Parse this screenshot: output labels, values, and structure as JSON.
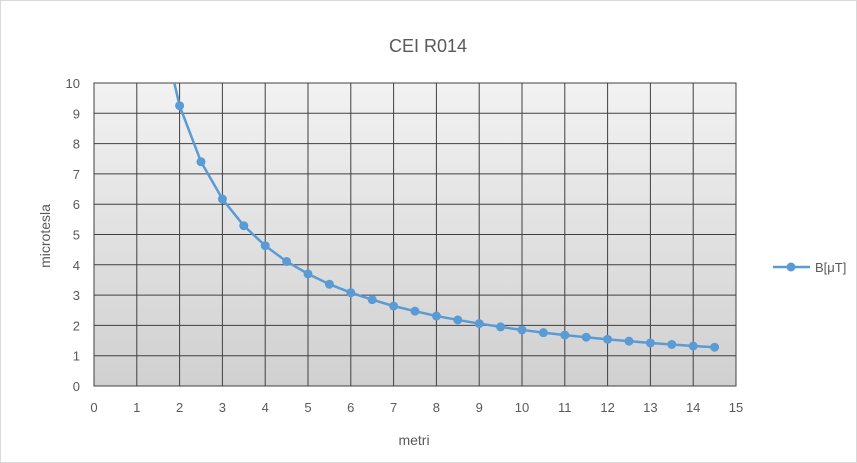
{
  "chart_data": {
    "type": "line",
    "title": "CEI R014",
    "xlabel": "metri",
    "ylabel": "microtesla",
    "xlim": [
      0,
      15
    ],
    "ylim": [
      0,
      10
    ],
    "xticks": [
      "0",
      "1",
      "2",
      "3",
      "4",
      "5",
      "6",
      "7",
      "8",
      "9",
      "10",
      "11",
      "12",
      "13",
      "14",
      "15"
    ],
    "yticks": [
      "0",
      "1",
      "2",
      "3",
      "4",
      "5",
      "6",
      "7",
      "8",
      "9",
      "10"
    ],
    "grid": true,
    "legend_position": "right",
    "colors": {
      "series": "#5b9bd5",
      "grid": "#404040",
      "background_top": "#f2f2f2",
      "background_bottom": "#d0d0d0"
    },
    "series": [
      {
        "name": "B[μT]",
        "x": [
          1.5,
          2,
          2.5,
          3,
          3.5,
          4,
          4.5,
          5,
          5.5,
          6,
          6.5,
          7,
          7.5,
          8,
          8.5,
          9,
          9.5,
          10,
          10.5,
          11,
          11.5,
          12,
          12.5,
          13,
          13.5,
          14,
          14.5
        ],
        "y": [
          12.3,
          9.25,
          7.4,
          6.17,
          5.29,
          4.63,
          4.11,
          3.7,
          3.36,
          3.08,
          2.85,
          2.64,
          2.47,
          2.31,
          2.18,
          2.06,
          1.95,
          1.85,
          1.76,
          1.68,
          1.61,
          1.54,
          1.48,
          1.42,
          1.37,
          1.32,
          1.28
        ],
        "markers_start_index": 1
      }
    ]
  }
}
